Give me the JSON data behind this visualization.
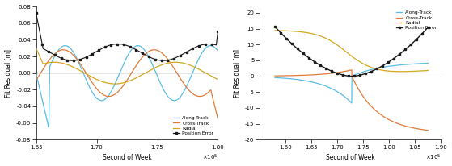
{
  "left": {
    "xlim": [
      165000.0,
      180000.0
    ],
    "ylim": [
      -0.08,
      0.08
    ],
    "xticks": [
      165000.0,
      170000.0,
      175000.0,
      180000.0
    ],
    "yticks": [
      -0.08,
      -0.06,
      -0.04,
      -0.02,
      0,
      0.02,
      0.04,
      0.06,
      0.08
    ],
    "xlabel": "Second of Week",
    "ylabel": "Fit Residual [m]"
  },
  "right": {
    "xlim": [
      155000.0,
      190000.0
    ],
    "ylim": [
      -20,
      22
    ],
    "xticks": [
      160000.0,
      165000.0,
      170000.0,
      175000.0,
      180000.0,
      185000.0,
      190000.0
    ],
    "yticks": [
      -20,
      -15,
      -10,
      -5,
      0,
      5,
      10,
      15,
      20
    ],
    "xlabel": "Second of Week",
    "ylabel": "Fit Residual [m]"
  },
  "colors": {
    "along_track": "#5bbde4",
    "cross_track": "#e07c3a",
    "radial": "#d4a820",
    "position_error": "#1a1a1a"
  },
  "legend_labels": [
    "Along-Track",
    "Cross-Track",
    "Radial",
    "Position Error"
  ]
}
